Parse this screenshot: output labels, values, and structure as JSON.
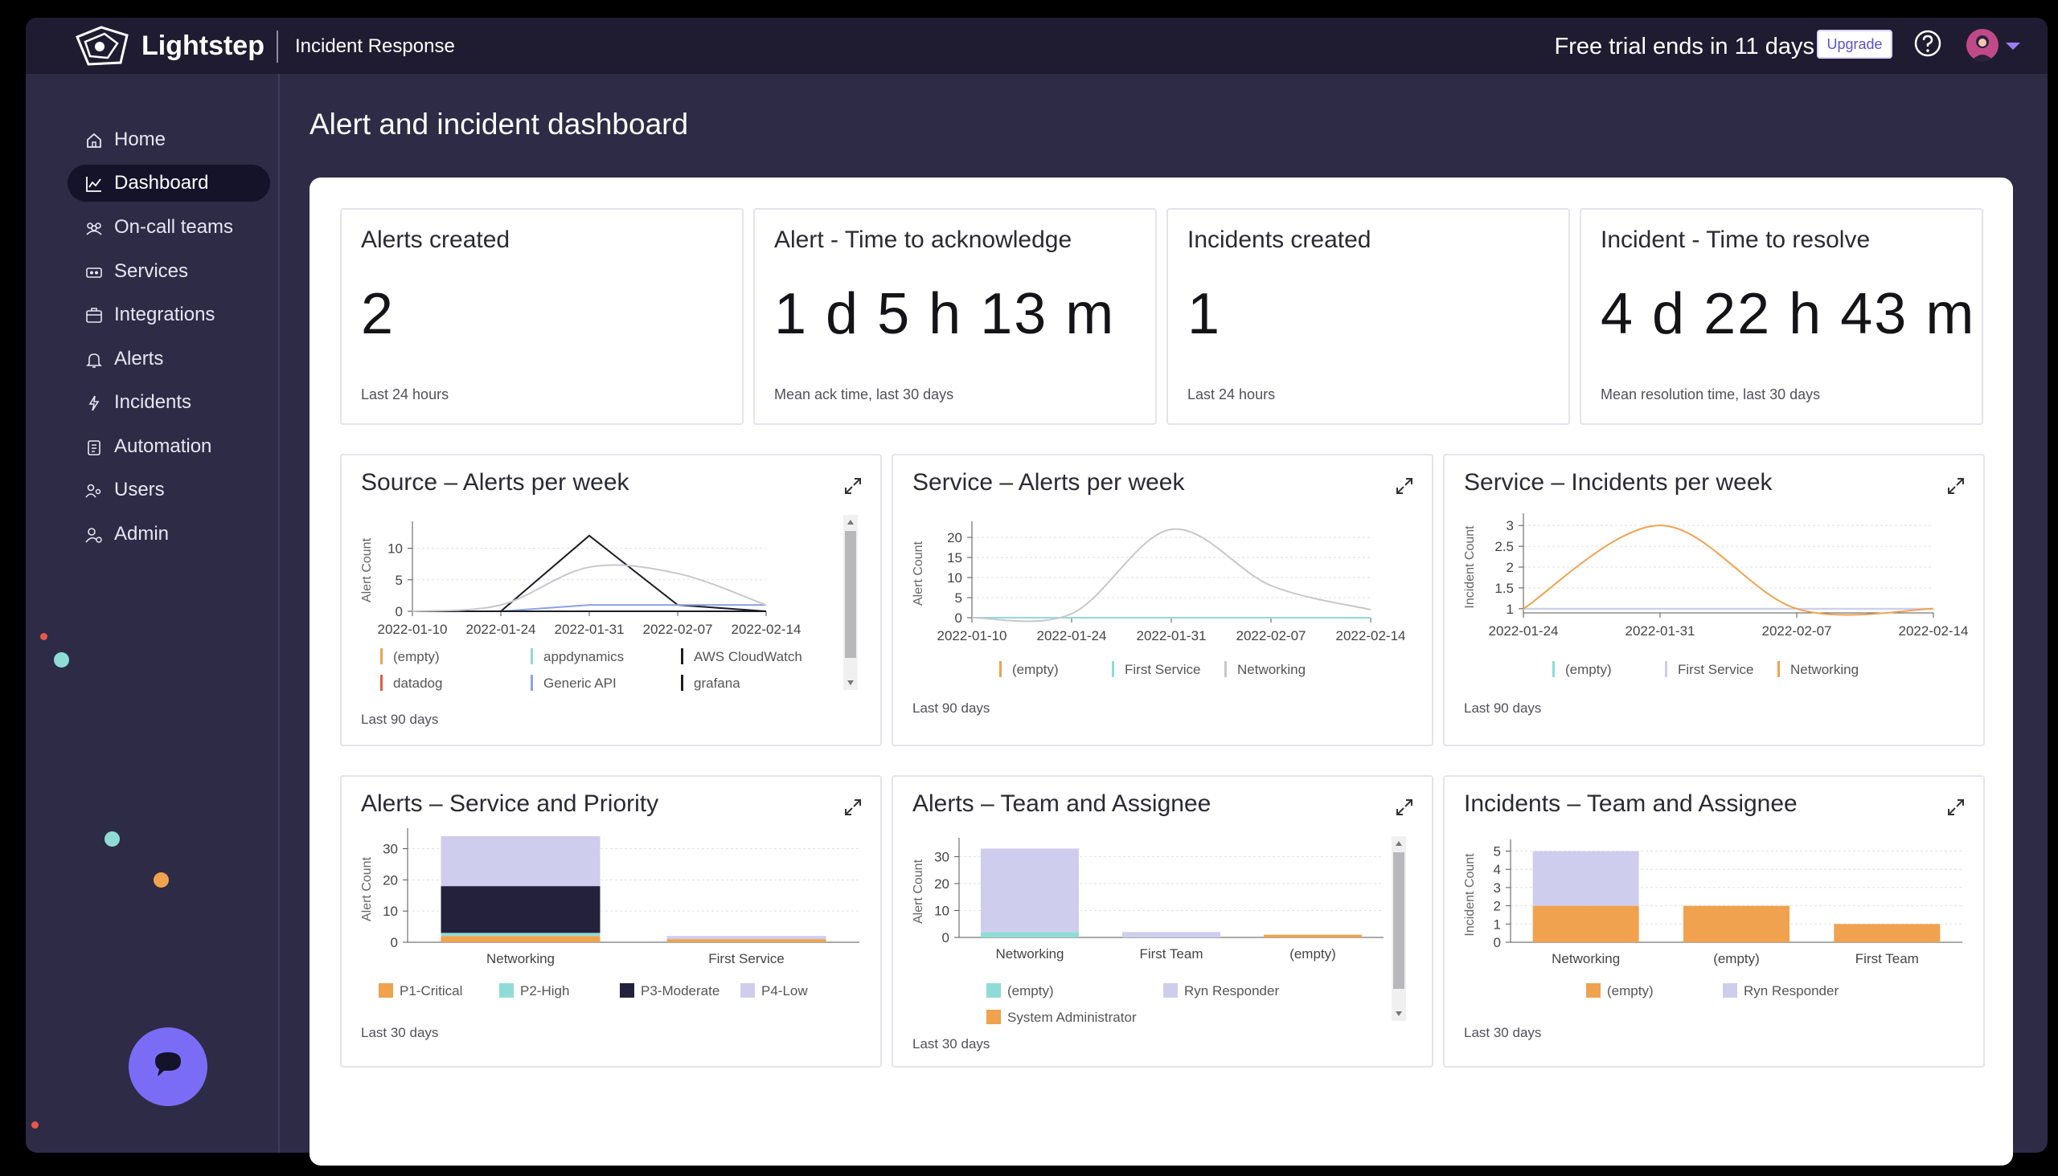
{
  "header": {
    "brand": "Lightstep",
    "product": "Incident Response",
    "trial_text": "Free trial ends in 11 days",
    "upgrade_label": "Upgrade"
  },
  "sidebar": {
    "items": [
      {
        "label": "Home",
        "icon": "home-icon"
      },
      {
        "label": "Dashboard",
        "icon": "chart-line-icon",
        "active": true
      },
      {
        "label": "On-call teams",
        "icon": "team-icon"
      },
      {
        "label": "Services",
        "icon": "services-icon"
      },
      {
        "label": "Integrations",
        "icon": "integrations-icon"
      },
      {
        "label": "Alerts",
        "icon": "bell-icon"
      },
      {
        "label": "Incidents",
        "icon": "lightning-icon"
      },
      {
        "label": "Automation",
        "icon": "automation-icon"
      },
      {
        "label": "Users",
        "icon": "users-icon"
      },
      {
        "label": "Admin",
        "icon": "admin-icon"
      }
    ]
  },
  "page": {
    "title": "Alert and incident dashboard"
  },
  "stats": [
    {
      "title": "Alerts created",
      "value": "2",
      "foot": "Last 24 hours"
    },
    {
      "title": "Alert - Time to acknowledge",
      "value": "1 d 5 h 13 m",
      "foot": "Mean ack time, last 30 days"
    },
    {
      "title": "Incidents created",
      "value": "1",
      "foot": "Last 24 hours"
    },
    {
      "title": "Incident - Time to resolve",
      "value": "4 d 22 h 43 m",
      "foot": "Mean resolution time, last 30 days"
    }
  ],
  "colors": {
    "orange": "#f0a24f",
    "teal": "#8fdcd6",
    "navy": "#24213d",
    "lavender": "#cfcdee",
    "blue": "#8ea0e6",
    "red": "#e8584a",
    "black": "#1c1c26",
    "gray": "#c8c8cc"
  },
  "chart_data": [
    {
      "id": "source-alerts",
      "type": "line",
      "title": "Source – Alerts per week",
      "ylabel": "Alert Count",
      "x": [
        "2022-01-10",
        "2022-01-24",
        "2022-01-31",
        "2022-02-07",
        "2022-02-14"
      ],
      "yticks": [
        0,
        5,
        10
      ],
      "ylim": [
        0,
        13
      ],
      "series": [
        {
          "name": "(empty)",
          "color": "#f0a24f",
          "values": [
            0,
            0,
            0,
            0,
            0
          ]
        },
        {
          "name": "appdynamics",
          "color": "#8fdcd6",
          "values": [
            0,
            0,
            0,
            0,
            0
          ]
        },
        {
          "name": "AWS CloudWatch",
          "color": "#1c1c26",
          "values": [
            0,
            0,
            12,
            1,
            0
          ]
        },
        {
          "name": "datadog",
          "color": "#e8584a",
          "values": [
            0,
            0,
            0,
            0,
            0
          ]
        },
        {
          "name": "Generic API",
          "color": "#8ea0e6",
          "values": [
            0,
            0,
            1,
            1,
            1
          ]
        },
        {
          "name": "grafana",
          "color": "#1c1c26",
          "values": [
            0,
            0,
            0,
            0,
            0
          ]
        },
        {
          "name": "",
          "color": "#c8c8cc",
          "values": [
            0,
            1,
            7,
            6,
            1
          ]
        }
      ],
      "foot": "Last 90 days"
    },
    {
      "id": "service-alerts",
      "type": "line",
      "title": "Service – Alerts per week",
      "ylabel": "Alert Count",
      "x": [
        "2022-01-10",
        "2022-01-24",
        "2022-01-31",
        "2022-02-07",
        "2022-02-14"
      ],
      "yticks": [
        0,
        5,
        10,
        15,
        20
      ],
      "ylim": [
        0,
        22
      ],
      "series": [
        {
          "name": "(empty)",
          "color": "#f0a24f",
          "values": [
            0,
            0,
            0,
            0,
            0
          ]
        },
        {
          "name": "First Service",
          "color": "#8fdcd6",
          "values": [
            0,
            0,
            0,
            0,
            0
          ]
        },
        {
          "name": "Networking",
          "color": "#c8c8cc",
          "values": [
            0,
            1,
            22,
            8,
            2
          ]
        }
      ],
      "foot": "Last 90 days"
    },
    {
      "id": "service-incidents",
      "type": "line",
      "title": "Service – Incidents per week",
      "ylabel": "Incident Count",
      "x": [
        "2022-01-24",
        "2022-01-31",
        "2022-02-07",
        "2022-02-14"
      ],
      "yticks": [
        1,
        1.5,
        2,
        2.5,
        3
      ],
      "ylim": [
        0.9,
        3.1
      ],
      "series": [
        {
          "name": "(empty)",
          "color": "#8fdcd6",
          "values": [
            1,
            1,
            1,
            1
          ]
        },
        {
          "name": "First Service",
          "color": "#cfcdee",
          "values": [
            1,
            1,
            1,
            1
          ]
        },
        {
          "name": "Networking",
          "color": "#f0a24f",
          "values": [
            1,
            3,
            1,
            1
          ]
        }
      ],
      "foot": "Last 90 days"
    },
    {
      "id": "alerts-service-priority",
      "type": "bar",
      "title": "Alerts – Service and Priority",
      "ylabel": "Alert Count",
      "categories": [
        "Networking",
        "First Service"
      ],
      "yticks": [
        0,
        10,
        20,
        30
      ],
      "ylim": [
        0,
        34
      ],
      "series": [
        {
          "name": "P1-Critical",
          "color": "#f0a24f",
          "values": [
            2,
            1
          ]
        },
        {
          "name": "P2-High",
          "color": "#8fdcd6",
          "values": [
            1,
            0
          ]
        },
        {
          "name": "P3-Moderate",
          "color": "#24213d",
          "values": [
            15,
            0
          ]
        },
        {
          "name": "P4-Low",
          "color": "#cfcdee",
          "values": [
            16,
            1
          ]
        }
      ],
      "foot": "Last 30 days"
    },
    {
      "id": "alerts-team-assignee",
      "type": "bar",
      "title": "Alerts – Team and Assignee",
      "ylabel": "Alert Count",
      "categories": [
        "Networking",
        "First Team",
        "(empty)"
      ],
      "yticks": [
        0,
        10,
        20,
        30
      ],
      "ylim": [
        0,
        34
      ],
      "series": [
        {
          "name": "(empty)",
          "color": "#8fdcd6",
          "values": [
            2,
            0,
            0
          ]
        },
        {
          "name": "Ryn Responder",
          "color": "#cfcdee",
          "values": [
            31,
            2,
            0
          ]
        },
        {
          "name": "System Administrator",
          "color": "#f0a24f",
          "values": [
            0,
            0,
            1
          ]
        }
      ],
      "foot": "Last 30 days"
    },
    {
      "id": "incidents-team-assignee",
      "type": "bar",
      "title": "Incidents – Team and Assignee",
      "ylabel": "Incident Count",
      "categories": [
        "Networking",
        "(empty)",
        "First Team"
      ],
      "yticks": [
        0,
        1,
        2,
        3,
        4,
        5
      ],
      "ylim": [
        0,
        5.2
      ],
      "series": [
        {
          "name": "(empty)",
          "color": "#f0a24f",
          "values": [
            2,
            2,
            1
          ]
        },
        {
          "name": "Ryn Responder",
          "color": "#cfcdee",
          "values": [
            3,
            0,
            0
          ]
        }
      ],
      "foot": "Last 30 days"
    }
  ]
}
